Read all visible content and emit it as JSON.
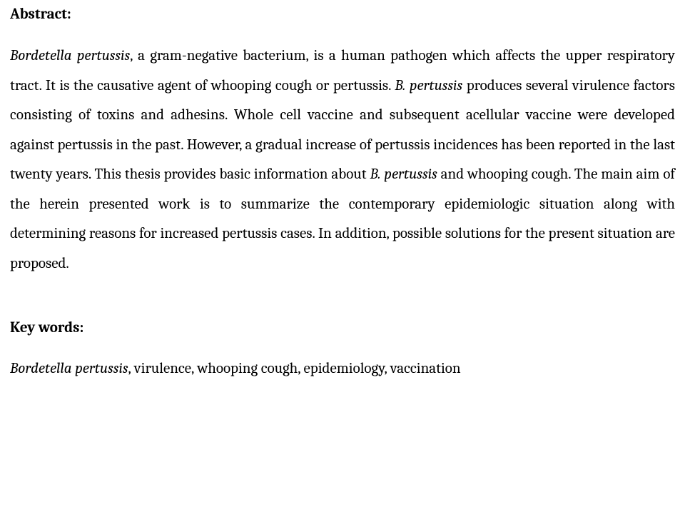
{
  "abstract": {
    "heading": "Abstract:",
    "p1_seg1_italic": "Bordetella pertussis",
    "p1_seg2": ", a gram-negative bacterium, is a human pathogen which affects the upper respiratory tract. It is the causative agent of whooping cough or pertussis. ",
    "p1_seg3_italic": "B. pertussis",
    "p1_seg4": " produces several virulence factors consisting of toxins and adhesins. Whole cell vaccine and subsequent acellular vaccine were developed against pertussis in the past. However, a gradual increase of pertussis incidences has been reported in the last twenty years. This thesis provides basic information about ",
    "p1_seg5_italic": "B. pertussis",
    "p1_seg6": " and whooping cough. The main aim of the herein presented work is to summarize the contemporary epidemiologic situation along with determining reasons for increased pertussis cases. In addition, possible solutions for the present situation are proposed."
  },
  "keywords": {
    "heading": "Key words:",
    "seg1_italic": "Bordetella pertussis",
    "seg2": ", virulence, whooping cough, epidemiology, vaccination"
  },
  "style": {
    "font_family": "Cambria, Georgia, serif",
    "font_size_pt": 12,
    "text_color": "#000000",
    "background_color": "#ffffff",
    "line_height": 1.98,
    "alignment": "justify"
  }
}
